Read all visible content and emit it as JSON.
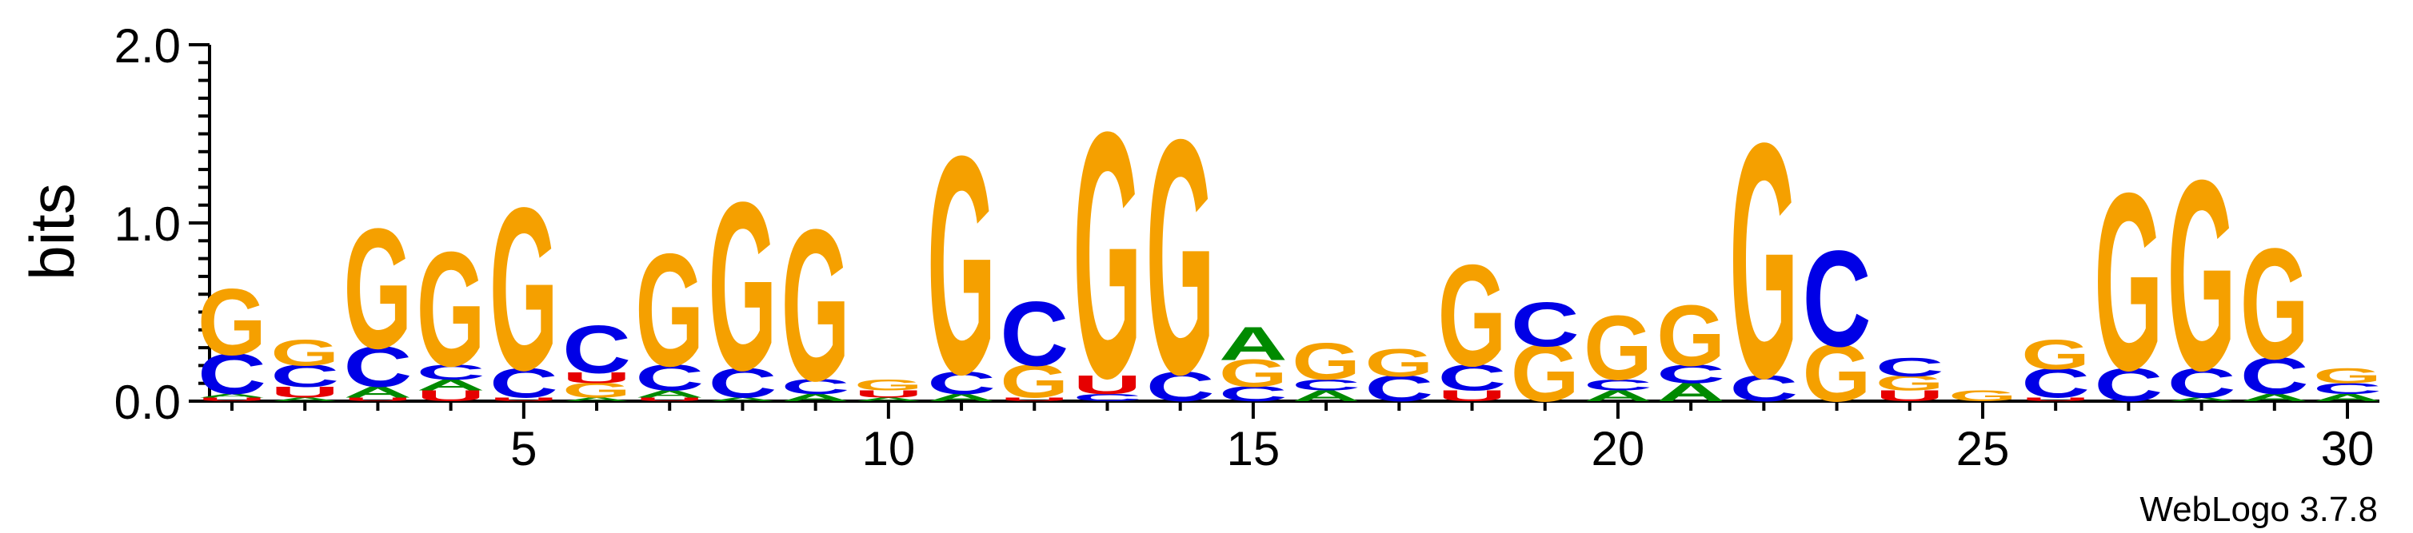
{
  "chart_data": {
    "type": "sequence-logo",
    "ylabel": "bits",
    "y_range": [
      0,
      2.0
    ],
    "y_ticks": [
      {
        "value": 0.0,
        "label": "0.0"
      },
      {
        "value": 1.0,
        "label": "1.0"
      },
      {
        "value": 2.0,
        "label": "2.0"
      }
    ],
    "y_minor_step": 0.1,
    "x_range": [
      1,
      30
    ],
    "x_ticks": [
      {
        "value": 5,
        "label": "5"
      },
      {
        "value": 10,
        "label": "10"
      },
      {
        "value": 15,
        "label": "15"
      },
      {
        "value": 20,
        "label": "20"
      },
      {
        "value": 25,
        "label": "25"
      },
      {
        "value": 30,
        "label": "30"
      }
    ],
    "colors": {
      "G": "#f5a000",
      "C": "#0000e6",
      "A": "#008a00",
      "U": "#e60000"
    },
    "positions": [
      {
        "pos": 1,
        "stack": [
          {
            "b": "U",
            "h": 0.02
          },
          {
            "b": "A",
            "h": 0.02
          },
          {
            "b": "C",
            "h": 0.22
          },
          {
            "b": "G",
            "h": 0.36
          }
        ]
      },
      {
        "pos": 2,
        "stack": [
          {
            "b": "A",
            "h": 0.02
          },
          {
            "b": "U",
            "h": 0.06
          },
          {
            "b": "C",
            "h": 0.12
          },
          {
            "b": "G",
            "h": 0.14
          }
        ]
      },
      {
        "pos": 3,
        "stack": [
          {
            "b": "U",
            "h": 0.02
          },
          {
            "b": "A",
            "h": 0.06
          },
          {
            "b": "C",
            "h": 0.22
          },
          {
            "b": "G",
            "h": 0.65
          }
        ]
      },
      {
        "pos": 4,
        "stack": [
          {
            "b": "U",
            "h": 0.06
          },
          {
            "b": "A",
            "h": 0.06
          },
          {
            "b": "C",
            "h": 0.08
          },
          {
            "b": "G",
            "h": 0.62
          }
        ]
      },
      {
        "pos": 5,
        "stack": [
          {
            "b": "U",
            "h": 0.02
          },
          {
            "b": "C",
            "h": 0.16
          },
          {
            "b": "G",
            "h": 0.88
          }
        ]
      },
      {
        "pos": 6,
        "stack": [
          {
            "b": "A",
            "h": 0.02
          },
          {
            "b": "G",
            "h": 0.08
          },
          {
            "b": "U",
            "h": 0.06
          },
          {
            "b": "C",
            "h": 0.26
          }
        ]
      },
      {
        "pos": 7,
        "stack": [
          {
            "b": "U",
            "h": 0.02
          },
          {
            "b": "A",
            "h": 0.04
          },
          {
            "b": "C",
            "h": 0.14
          },
          {
            "b": "G",
            "h": 0.61
          }
        ]
      },
      {
        "pos": 8,
        "stack": [
          {
            "b": "A",
            "h": 0.02
          },
          {
            "b": "C",
            "h": 0.16
          },
          {
            "b": "G",
            "h": 0.91
          }
        ]
      },
      {
        "pos": 9,
        "stack": [
          {
            "b": "A",
            "h": 0.04
          },
          {
            "b": "C",
            "h": 0.08
          },
          {
            "b": "G",
            "h": 0.82
          }
        ]
      },
      {
        "pos": 10,
        "stack": [
          {
            "b": "A",
            "h": 0.02
          },
          {
            "b": "U",
            "h": 0.04
          },
          {
            "b": "G",
            "h": 0.06
          }
        ]
      },
      {
        "pos": 11,
        "stack": [
          {
            "b": "A",
            "h": 0.04
          },
          {
            "b": "C",
            "h": 0.12
          },
          {
            "b": "G",
            "h": 1.18
          }
        ]
      },
      {
        "pos": 12,
        "stack": [
          {
            "b": "U",
            "h": 0.02
          },
          {
            "b": "G",
            "h": 0.18
          },
          {
            "b": "C",
            "h": 0.35
          }
        ]
      },
      {
        "pos": 13,
        "stack": [
          {
            "b": "C",
            "h": 0.04
          },
          {
            "b": "U",
            "h": 0.1
          },
          {
            "b": "G",
            "h": 1.33
          }
        ]
      },
      {
        "pos": 14,
        "stack": [
          {
            "b": "C",
            "h": 0.16
          },
          {
            "b": "G",
            "h": 1.27
          }
        ]
      },
      {
        "pos": 15,
        "stack": [
          {
            "b": "C",
            "h": 0.08
          },
          {
            "b": "G",
            "h": 0.15
          },
          {
            "b": "A",
            "h": 0.18
          }
        ]
      },
      {
        "pos": 16,
        "stack": [
          {
            "b": "A",
            "h": 0.06
          },
          {
            "b": "C",
            "h": 0.06
          },
          {
            "b": "G",
            "h": 0.2
          }
        ]
      },
      {
        "pos": 17,
        "stack": [
          {
            "b": "C",
            "h": 0.14
          },
          {
            "b": "G",
            "h": 0.15
          }
        ]
      },
      {
        "pos": 18,
        "stack": [
          {
            "b": "U",
            "h": 0.06
          },
          {
            "b": "C",
            "h": 0.14
          },
          {
            "b": "G",
            "h": 0.55
          }
        ]
      },
      {
        "pos": 19,
        "stack": [
          {
            "b": "G",
            "h": 0.31
          },
          {
            "b": "C",
            "h": 0.24
          }
        ]
      },
      {
        "pos": 20,
        "stack": [
          {
            "b": "A",
            "h": 0.06
          },
          {
            "b": "C",
            "h": 0.06
          },
          {
            "b": "G",
            "h": 0.35
          }
        ]
      },
      {
        "pos": 21,
        "stack": [
          {
            "b": "A",
            "h": 0.1
          },
          {
            "b": "C",
            "h": 0.1
          },
          {
            "b": "G",
            "h": 0.33
          }
        ]
      },
      {
        "pos": 22,
        "stack": [
          {
            "b": "C",
            "h": 0.14
          },
          {
            "b": "G",
            "h": 1.27
          }
        ]
      },
      {
        "pos": 23,
        "stack": [
          {
            "b": "G",
            "h": 0.31
          },
          {
            "b": "C",
            "h": 0.52
          }
        ]
      },
      {
        "pos": 24,
        "stack": [
          {
            "b": "U",
            "h": 0.06
          },
          {
            "b": "G",
            "h": 0.08
          },
          {
            "b": "C",
            "h": 0.1
          }
        ]
      },
      {
        "pos": 25,
        "stack": [
          {
            "b": "G",
            "h": 0.06
          }
        ]
      },
      {
        "pos": 26,
        "stack": [
          {
            "b": "U",
            "h": 0.02
          },
          {
            "b": "C",
            "h": 0.16
          },
          {
            "b": "G",
            "h": 0.16
          }
        ]
      },
      {
        "pos": 27,
        "stack": [
          {
            "b": "C",
            "h": 0.18
          },
          {
            "b": "G",
            "h": 0.96
          }
        ]
      },
      {
        "pos": 28,
        "stack": [
          {
            "b": "A",
            "h": 0.02
          },
          {
            "b": "C",
            "h": 0.16
          },
          {
            "b": "G",
            "h": 1.03
          }
        ]
      },
      {
        "pos": 29,
        "stack": [
          {
            "b": "A",
            "h": 0.04
          },
          {
            "b": "C",
            "h": 0.2
          },
          {
            "b": "G",
            "h": 0.6
          }
        ]
      },
      {
        "pos": 30,
        "stack": [
          {
            "b": "A",
            "h": 0.04
          },
          {
            "b": "C",
            "h": 0.06
          },
          {
            "b": "G",
            "h": 0.08
          }
        ]
      }
    ],
    "footer": "WebLogo 3.7.8"
  }
}
